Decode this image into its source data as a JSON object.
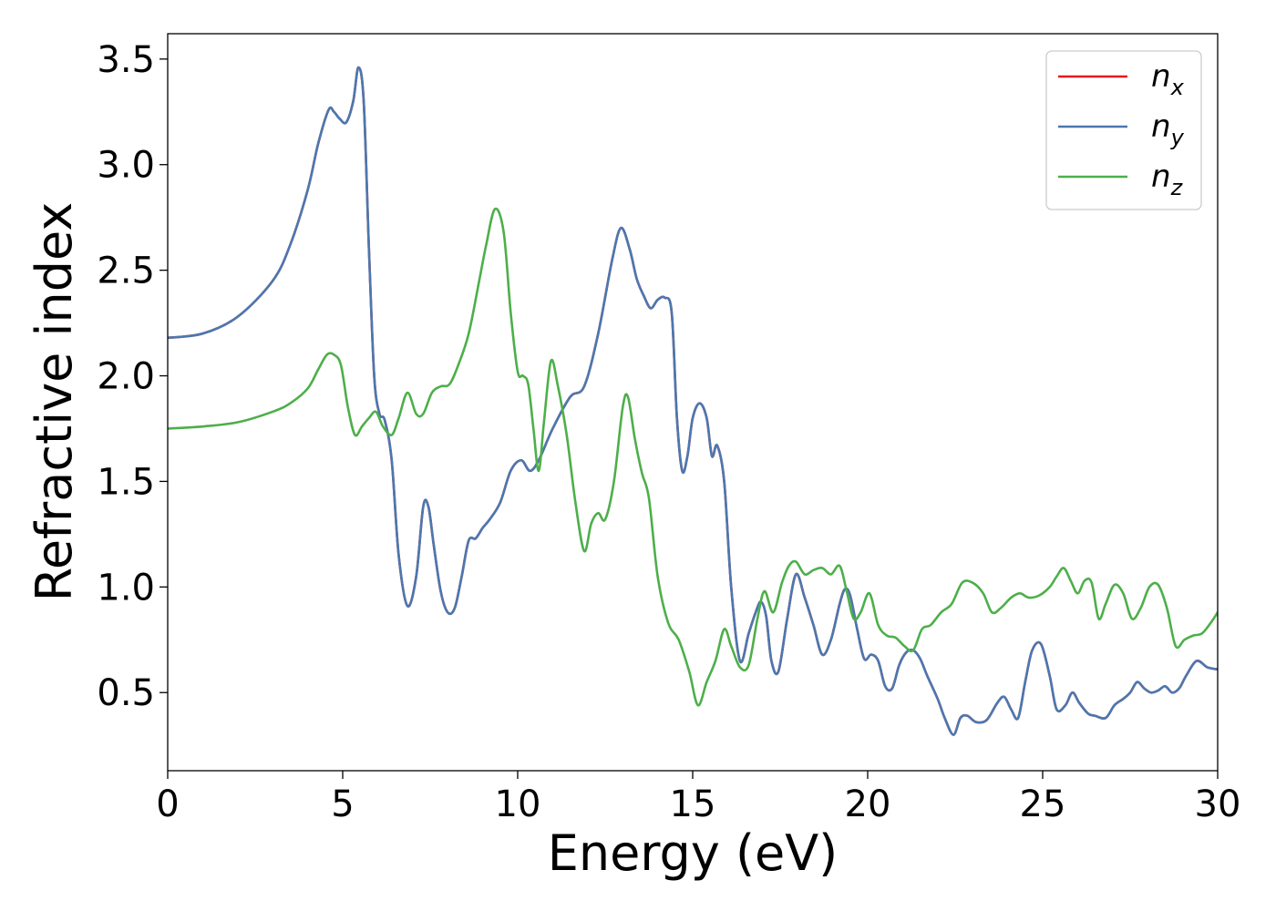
{
  "chart_data": {
    "type": "line",
    "xlabel": "Energy (eV)",
    "ylabel": "Refractive index",
    "xlim": [
      0,
      30
    ],
    "ylim": [
      0.13,
      3.62
    ],
    "xticks": [
      0,
      5,
      10,
      15,
      20,
      25,
      30
    ],
    "yticks": [
      0.5,
      1.0,
      1.5,
      2.0,
      2.5,
      3.0,
      3.5
    ],
    "grid": false,
    "legend_position": "top-right",
    "series": [
      {
        "name": "n_x",
        "label_main": "n",
        "label_sub": "x",
        "color": "#e41a1c",
        "x": [
          0,
          1,
          2,
          3,
          3.5,
          4,
          4.3,
          4.6,
          4.75,
          4.9,
          5.1,
          5.3,
          5.45,
          5.6,
          5.75,
          5.9,
          6.05,
          6.2,
          6.4,
          6.6,
          6.85,
          7.1,
          7.3,
          7.45,
          7.6,
          7.8,
          8.0,
          8.2,
          8.4,
          8.6,
          8.8,
          9.0,
          9.2,
          9.5,
          9.8,
          10.1,
          10.35,
          10.6,
          11.0,
          11.5,
          11.9,
          12.3,
          12.7,
          12.95,
          13.2,
          13.4,
          13.6,
          13.8,
          14.0,
          14.2,
          14.4,
          14.55,
          14.7,
          14.85,
          15.0,
          15.2,
          15.4,
          15.55,
          15.7,
          15.9,
          16.1,
          16.35,
          16.6,
          16.8,
          16.95,
          17.1,
          17.25,
          17.45,
          17.7,
          17.95,
          18.2,
          18.45,
          18.7,
          18.95,
          19.2,
          19.35,
          19.5,
          19.7,
          19.9,
          20.1,
          20.3,
          20.5,
          20.7,
          20.9,
          21.1,
          21.3,
          21.5,
          21.7,
          22.0,
          22.2,
          22.45,
          22.65,
          22.85,
          23.1,
          23.4,
          23.7,
          23.9,
          24.1,
          24.3,
          24.5,
          24.7,
          24.95,
          25.2,
          25.4,
          25.65,
          25.85,
          26.05,
          26.3,
          26.5,
          26.8,
          27.05,
          27.3,
          27.5,
          27.7,
          27.9,
          28.1,
          28.3,
          28.5,
          28.7,
          28.9,
          29.1,
          29.4,
          29.7,
          30
        ],
        "y": [
          2.18,
          2.2,
          2.28,
          2.45,
          2.62,
          2.88,
          3.1,
          3.26,
          3.25,
          3.22,
          3.2,
          3.3,
          3.46,
          3.3,
          2.6,
          2.0,
          1.82,
          1.79,
          1.6,
          1.15,
          0.91,
          1.05,
          1.38,
          1.38,
          1.2,
          0.98,
          0.88,
          0.9,
          1.05,
          1.22,
          1.23,
          1.28,
          1.32,
          1.4,
          1.55,
          1.6,
          1.55,
          1.6,
          1.75,
          1.9,
          1.95,
          2.2,
          2.55,
          2.7,
          2.6,
          2.46,
          2.38,
          2.32,
          2.36,
          2.37,
          2.3,
          1.8,
          1.55,
          1.62,
          1.8,
          1.87,
          1.8,
          1.62,
          1.67,
          1.5,
          1.0,
          0.65,
          0.78,
          0.88,
          0.93,
          0.86,
          0.65,
          0.6,
          0.85,
          1.06,
          0.95,
          0.82,
          0.68,
          0.75,
          0.92,
          0.99,
          0.96,
          0.8,
          0.66,
          0.68,
          0.65,
          0.53,
          0.52,
          0.63,
          0.69,
          0.7,
          0.66,
          0.58,
          0.47,
          0.38,
          0.3,
          0.38,
          0.39,
          0.36,
          0.37,
          0.45,
          0.48,
          0.42,
          0.38,
          0.55,
          0.7,
          0.73,
          0.58,
          0.42,
          0.44,
          0.5,
          0.45,
          0.4,
          0.39,
          0.38,
          0.44,
          0.47,
          0.5,
          0.55,
          0.52,
          0.5,
          0.51,
          0.53,
          0.5,
          0.52,
          0.58,
          0.65,
          0.62,
          0.61
        ]
      },
      {
        "name": "n_y",
        "label_main": "n",
        "label_sub": "y",
        "color": "#4a78b0",
        "x": [
          0,
          1,
          2,
          3,
          3.5,
          4,
          4.3,
          4.6,
          4.75,
          4.9,
          5.1,
          5.3,
          5.45,
          5.6,
          5.75,
          5.9,
          6.05,
          6.2,
          6.4,
          6.6,
          6.85,
          7.1,
          7.3,
          7.45,
          7.6,
          7.8,
          8.0,
          8.2,
          8.4,
          8.6,
          8.8,
          9.0,
          9.2,
          9.5,
          9.8,
          10.1,
          10.35,
          10.6,
          11.0,
          11.5,
          11.9,
          12.3,
          12.7,
          12.95,
          13.2,
          13.4,
          13.6,
          13.8,
          14.0,
          14.2,
          14.4,
          14.55,
          14.7,
          14.85,
          15.0,
          15.2,
          15.4,
          15.55,
          15.7,
          15.9,
          16.1,
          16.35,
          16.6,
          16.8,
          16.95,
          17.1,
          17.25,
          17.45,
          17.7,
          17.95,
          18.2,
          18.45,
          18.7,
          18.95,
          19.2,
          19.35,
          19.5,
          19.7,
          19.9,
          20.1,
          20.3,
          20.5,
          20.7,
          20.9,
          21.1,
          21.3,
          21.5,
          21.7,
          22.0,
          22.2,
          22.45,
          22.65,
          22.85,
          23.1,
          23.4,
          23.7,
          23.9,
          24.1,
          24.3,
          24.5,
          24.7,
          24.95,
          25.2,
          25.4,
          25.65,
          25.85,
          26.05,
          26.3,
          26.5,
          26.8,
          27.05,
          27.3,
          27.5,
          27.7,
          27.9,
          28.1,
          28.3,
          28.5,
          28.7,
          28.9,
          29.1,
          29.4,
          29.7,
          30
        ],
        "y": [
          2.18,
          2.2,
          2.28,
          2.45,
          2.62,
          2.88,
          3.1,
          3.26,
          3.25,
          3.22,
          3.2,
          3.3,
          3.46,
          3.3,
          2.6,
          2.0,
          1.82,
          1.79,
          1.6,
          1.15,
          0.91,
          1.05,
          1.38,
          1.38,
          1.2,
          0.98,
          0.88,
          0.9,
          1.05,
          1.22,
          1.23,
          1.28,
          1.32,
          1.4,
          1.55,
          1.6,
          1.55,
          1.6,
          1.75,
          1.9,
          1.95,
          2.2,
          2.55,
          2.7,
          2.6,
          2.46,
          2.38,
          2.32,
          2.36,
          2.37,
          2.3,
          1.8,
          1.55,
          1.62,
          1.8,
          1.87,
          1.8,
          1.62,
          1.67,
          1.5,
          1.0,
          0.65,
          0.78,
          0.88,
          0.93,
          0.86,
          0.65,
          0.6,
          0.85,
          1.06,
          0.95,
          0.82,
          0.68,
          0.75,
          0.92,
          0.99,
          0.96,
          0.8,
          0.66,
          0.68,
          0.65,
          0.53,
          0.52,
          0.63,
          0.69,
          0.7,
          0.66,
          0.58,
          0.47,
          0.38,
          0.3,
          0.38,
          0.39,
          0.36,
          0.37,
          0.45,
          0.48,
          0.42,
          0.38,
          0.55,
          0.7,
          0.73,
          0.58,
          0.42,
          0.44,
          0.5,
          0.45,
          0.4,
          0.39,
          0.38,
          0.44,
          0.47,
          0.5,
          0.55,
          0.52,
          0.5,
          0.51,
          0.53,
          0.5,
          0.52,
          0.58,
          0.65,
          0.62,
          0.61
        ]
      },
      {
        "name": "n_z",
        "label_main": "n",
        "label_sub": "z",
        "color": "#4daf4a",
        "x": [
          0,
          1,
          2,
          3,
          3.5,
          4,
          4.3,
          4.55,
          4.75,
          4.95,
          5.15,
          5.35,
          5.55,
          5.75,
          5.95,
          6.15,
          6.4,
          6.6,
          6.85,
          7.1,
          7.3,
          7.55,
          7.8,
          8.05,
          8.3,
          8.6,
          8.9,
          9.1,
          9.35,
          9.6,
          9.8,
          10.0,
          10.15,
          10.3,
          10.45,
          10.6,
          10.75,
          10.95,
          11.15,
          11.4,
          11.65,
          11.9,
          12.1,
          12.3,
          12.5,
          12.75,
          13.0,
          13.15,
          13.35,
          13.55,
          13.75,
          14.0,
          14.3,
          14.6,
          14.9,
          15.15,
          15.4,
          15.65,
          15.9,
          16.1,
          16.35,
          16.6,
          16.85,
          17.05,
          17.3,
          17.55,
          17.75,
          17.95,
          18.2,
          18.45,
          18.7,
          18.95,
          19.2,
          19.4,
          19.6,
          19.8,
          20.05,
          20.3,
          20.55,
          20.8,
          21.05,
          21.3,
          21.55,
          21.8,
          22.1,
          22.4,
          22.7,
          23.0,
          23.3,
          23.55,
          23.8,
          24.1,
          24.35,
          24.6,
          24.9,
          25.2,
          25.4,
          25.6,
          25.8,
          26.0,
          26.2,
          26.4,
          26.6,
          26.8,
          27.05,
          27.3,
          27.55,
          27.8,
          28.05,
          28.3,
          28.55,
          28.8,
          29.05,
          29.3,
          29.55,
          29.8,
          30
        ],
        "y": [
          1.75,
          1.76,
          1.78,
          1.83,
          1.87,
          1.94,
          2.03,
          2.1,
          2.1,
          2.05,
          1.85,
          1.72,
          1.76,
          1.8,
          1.83,
          1.76,
          1.72,
          1.8,
          1.92,
          1.82,
          1.82,
          1.92,
          1.95,
          1.96,
          2.05,
          2.2,
          2.45,
          2.62,
          2.79,
          2.68,
          2.3,
          2.02,
          2.0,
          1.96,
          1.75,
          1.55,
          1.78,
          2.07,
          1.95,
          1.72,
          1.4,
          1.17,
          1.3,
          1.35,
          1.32,
          1.5,
          1.85,
          1.9,
          1.7,
          1.54,
          1.42,
          1.05,
          0.83,
          0.75,
          0.6,
          0.44,
          0.55,
          0.65,
          0.8,
          0.72,
          0.62,
          0.63,
          0.85,
          0.98,
          0.88,
          1.02,
          1.1,
          1.12,
          1.06,
          1.08,
          1.09,
          1.06,
          1.1,
          0.98,
          0.85,
          0.88,
          0.97,
          0.82,
          0.77,
          0.76,
          0.72,
          0.7,
          0.8,
          0.82,
          0.88,
          0.92,
          1.02,
          1.02,
          0.97,
          0.88,
          0.9,
          0.95,
          0.97,
          0.95,
          0.96,
          1.0,
          1.05,
          1.09,
          1.03,
          0.97,
          1.03,
          1.02,
          0.85,
          0.92,
          1.01,
          0.97,
          0.85,
          0.9,
          1.0,
          1.01,
          0.9,
          0.72,
          0.75,
          0.77,
          0.78,
          0.83,
          0.88
        ]
      }
    ]
  }
}
